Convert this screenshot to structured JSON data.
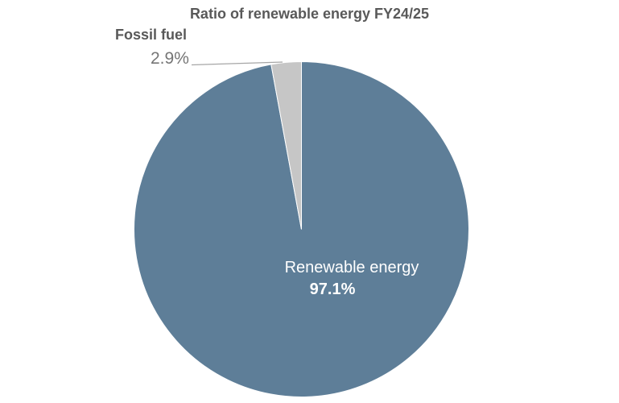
{
  "chart_data": {
    "type": "pie",
    "title": "Ratio of renewable energy FY24/25",
    "categories": [
      "Renewable energy",
      "Fossil fuel"
    ],
    "values": [
      97.1,
      2.9
    ],
    "unit": "%",
    "colors": [
      "#5E7E98",
      "#C6C6C6"
    ],
    "start_angle": "12 o'clock",
    "direction": "clockwise",
    "legend": "none",
    "labels": {
      "renewable": {
        "name": "Renewable energy",
        "value_text": "97.1%",
        "position": "inside",
        "text_color": "#FFFFFF"
      },
      "fossil": {
        "name": "Fossil fuel",
        "value_text": "2.9%",
        "position": "outside-callout",
        "name_color": "#595959",
        "value_color": "#767676"
      }
    }
  },
  "style_colors": {
    "background": "#FFFFFF",
    "title_text": "#595959",
    "leader_line": "#A6A6A6",
    "slice_border": "#FFFFFF"
  }
}
